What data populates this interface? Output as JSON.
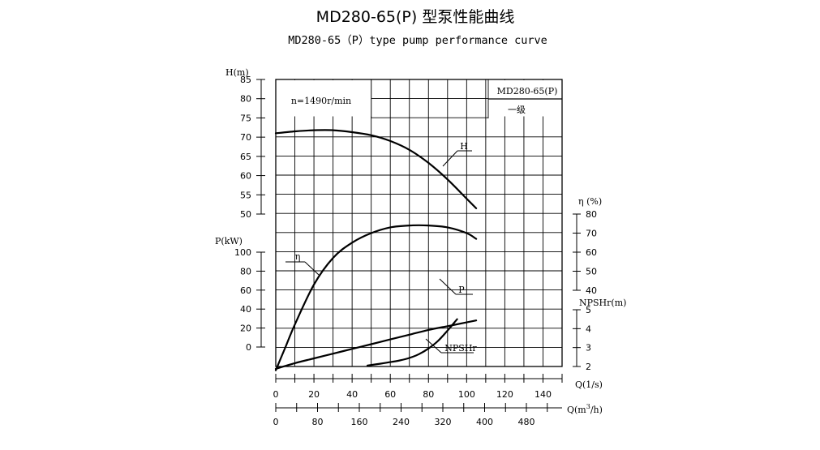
{
  "chart_data": {
    "type": "line",
    "title": "MD280-65(P) 型泵性能曲线",
    "subtitle": "MD280-65（P）type pump performance curve",
    "speed_label": "n=1490r/min",
    "model_box": {
      "model": "MD280-65(P)",
      "stage": "一级"
    },
    "x_axis_flow_ls": {
      "label": "Q(1/s)",
      "ticks": [
        0,
        20,
        40,
        60,
        80,
        100,
        120,
        140
      ],
      "range": [
        0,
        150
      ]
    },
    "x_axis_flow_m3h": {
      "label_prefix": "Q(m",
      "label_sup": "3",
      "label_suffix": "/h)",
      "ticks": [
        0,
        80,
        160,
        240,
        320,
        400,
        480
      ]
    },
    "y_axis_head": {
      "label": "H(m)",
      "ticks": [
        50,
        55,
        60,
        65,
        70,
        75,
        80,
        85
      ],
      "range": [
        50,
        85
      ]
    },
    "y_axis_power": {
      "label": "P(kW)",
      "ticks": [
        0,
        20,
        40,
        60,
        80,
        100
      ],
      "range": [
        0,
        100
      ]
    },
    "y_axis_efficiency": {
      "label": "η (%)",
      "ticks": [
        40,
        50,
        60,
        70,
        80
      ],
      "range": [
        40,
        80
      ]
    },
    "y_axis_npshr": {
      "label": "NPSHr(m)",
      "ticks": [
        2,
        3,
        4,
        5
      ],
      "range": [
        2,
        5
      ]
    },
    "series": [
      {
        "name": "H",
        "axis": "head",
        "x": [
          0,
          10,
          20,
          30,
          40,
          50,
          60,
          70,
          80,
          90,
          100,
          105
        ],
        "y": [
          71,
          71.5,
          71.8,
          71.8,
          71.3,
          70.5,
          69,
          66.7,
          63.3,
          59,
          54,
          51.5
        ]
      },
      {
        "name": "η",
        "axis": "efficiency",
        "x": [
          0,
          5,
          10,
          20,
          30,
          40,
          50,
          60,
          70,
          80,
          90,
          100,
          105
        ],
        "y": [
          -2,
          10,
          22,
          43,
          57,
          65,
          70,
          73,
          74,
          74,
          73,
          70,
          67
        ]
      },
      {
        "name": "P",
        "axis": "power",
        "x": [
          0,
          10,
          20,
          30,
          40,
          50,
          60,
          70,
          80,
          90,
          100,
          105
        ],
        "y": [
          -23,
          -17,
          -12,
          -7,
          -2,
          3,
          8,
          13,
          18,
          22,
          26,
          28
        ]
      },
      {
        "name": "NPSHr",
        "axis": "npshr",
        "x": [
          48,
          55,
          60,
          65,
          70,
          75,
          80,
          85,
          90,
          95
        ],
        "y": [
          2.05,
          2.15,
          2.23,
          2.32,
          2.45,
          2.65,
          2.95,
          3.35,
          3.9,
          4.5
        ]
      }
    ],
    "grid": true
  }
}
